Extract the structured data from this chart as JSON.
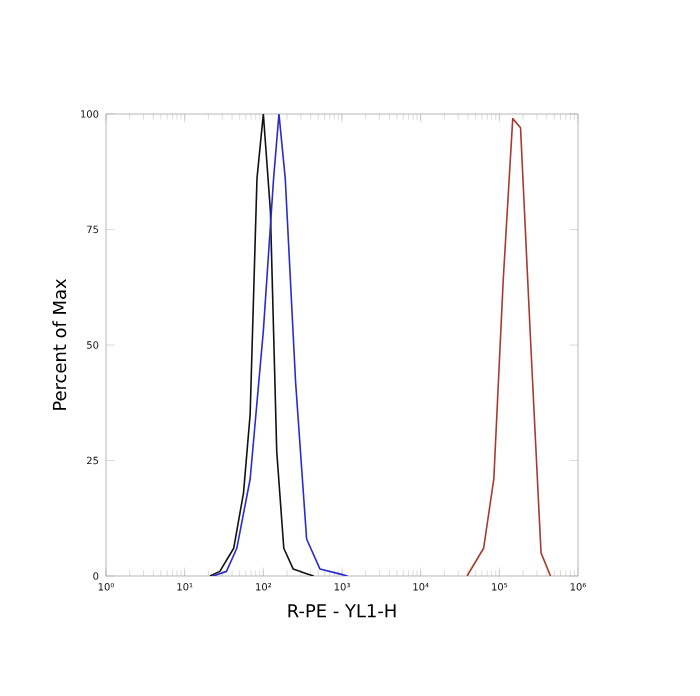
{
  "chart_data": {
    "type": "line",
    "xlabel": "R-PE - YL1-H",
    "ylabel": "Percent of Max",
    "log": "x",
    "xlim": [
      1,
      1000000
    ],
    "ylim": [
      0,
      100
    ],
    "xticks": [
      {
        "value": 1,
        "label": "10⁰"
      },
      {
        "value": 10,
        "label": "10¹"
      },
      {
        "value": 100,
        "label": "10²"
      },
      {
        "value": 1000,
        "label": "10³"
      },
      {
        "value": 10000,
        "label": "10⁴"
      },
      {
        "value": 100000,
        "label": "10⁵"
      },
      {
        "value": 1000000,
        "label": "10⁶"
      }
    ],
    "yticks": [
      0,
      25,
      50,
      75,
      100
    ],
    "grid": false,
    "marker": "none",
    "line_style": "solid",
    "series": [
      {
        "color": "#111111",
        "x": [
          21,
          28,
          42,
          56,
          68,
          83,
          100,
          123,
          148,
          182,
          240,
          355,
          436
        ],
        "values": [
          0,
          1,
          6,
          18,
          35,
          86,
          100,
          79,
          27,
          6,
          1.5,
          0.5,
          0
        ]
      },
      {
        "color": "#2a2ad0",
        "x": [
          23,
          34,
          46,
          68,
          100,
          135,
          158,
          190,
          257,
          355,
          525,
          955,
          1175
        ],
        "values": [
          0,
          1,
          6,
          21,
          53,
          86,
          100,
          86,
          42,
          8,
          1.5,
          0.4,
          0
        ]
      },
      {
        "color": "#a8392e",
        "x": [
          38900,
          63100,
          85100,
          112000,
          148000,
          186000,
          251000,
          339000,
          447000
        ],
        "values": [
          0,
          6,
          21,
          64,
          99,
          97,
          50,
          5,
          0
        ]
      }
    ]
  }
}
